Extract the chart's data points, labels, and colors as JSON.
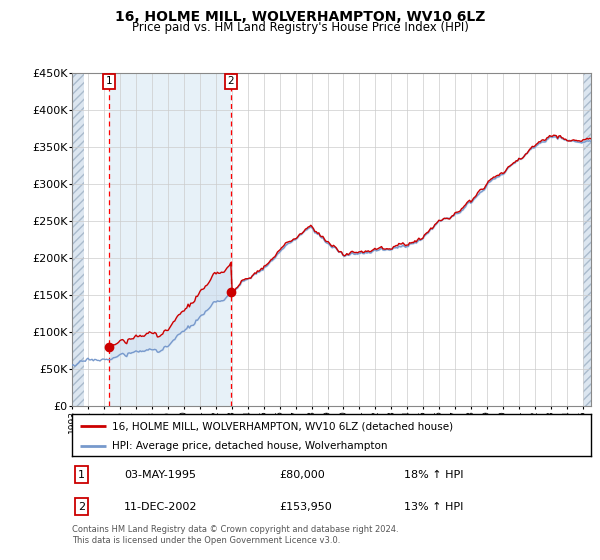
{
  "title": "16, HOLME MILL, WOLVERHAMPTON, WV10 6LZ",
  "subtitle": "Price paid vs. HM Land Registry's House Price Index (HPI)",
  "ylim": [
    0,
    450000
  ],
  "yticks": [
    0,
    50000,
    100000,
    150000,
    200000,
    250000,
    300000,
    350000,
    400000,
    450000
  ],
  "xlim_start": 1993.0,
  "xlim_end": 2025.5,
  "sale1_date": 1995.34,
  "sale1_price": 80000,
  "sale2_date": 2002.95,
  "sale2_price": 153950,
  "legend_line1": "16, HOLME MILL, WOLVERHAMPTON, WV10 6LZ (detached house)",
  "legend_line2": "HPI: Average price, detached house, Wolverhampton",
  "table_row1_num": "1",
  "table_row1_date": "03-MAY-1995",
  "table_row1_price": "£80,000",
  "table_row1_hpi": "18% ↑ HPI",
  "table_row2_num": "2",
  "table_row2_date": "11-DEC-2002",
  "table_row2_price": "£153,950",
  "table_row2_hpi": "13% ↑ HPI",
  "footnote": "Contains HM Land Registry data © Crown copyright and database right 2024.\nThis data is licensed under the Open Government Licence v3.0.",
  "hatch_color": "#aabbcc",
  "hatch_bg": "#dce6f0",
  "sale1_vline_x": 1995.34,
  "sale2_vline_x": 2002.95,
  "line_color_red": "#cc0000",
  "line_color_blue": "#7799cc",
  "fill_color": "#ccddf0",
  "bg_between_sales": "#d8e8f4"
}
